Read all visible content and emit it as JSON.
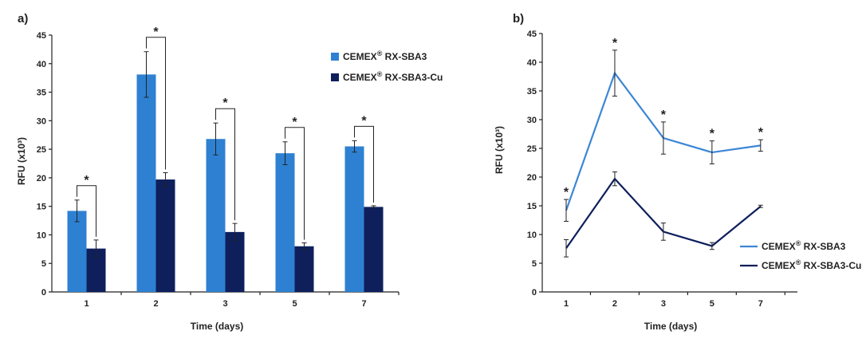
{
  "chart_data": [
    {
      "type": "bar",
      "panel_label": "a)",
      "categories": [
        "1",
        "2",
        "3",
        "5",
        "7"
      ],
      "series": [
        {
          "name": "CEMEX® RX-SBA3",
          "values": [
            14.2,
            38.1,
            26.8,
            24.3,
            25.5
          ],
          "errors": [
            1.9,
            4.0,
            2.8,
            2.0,
            1.0
          ],
          "color": "#2e81d2"
        },
        {
          "name": "CEMEX® RX-SBA3-Cu",
          "values": [
            7.6,
            19.7,
            10.5,
            8.0,
            14.9
          ],
          "errors": [
            1.5,
            1.2,
            1.5,
            0.6,
            0.2
          ],
          "color": "#0e1f5c"
        }
      ],
      "significance": [
        "*",
        "*",
        "*",
        "*",
        "*"
      ],
      "xlabel": "Time (days)",
      "ylabel": "RFU (x10³)",
      "ylim": [
        0,
        45
      ],
      "yticks": [
        0,
        5,
        10,
        15,
        20,
        25,
        30,
        35,
        40,
        45
      ],
      "grid": false,
      "legend_position": "top-right"
    },
    {
      "type": "line",
      "panel_label": "b)",
      "categories": [
        "1",
        "2",
        "3",
        "5",
        "7"
      ],
      "series": [
        {
          "name": "CEMEX® RX-SBA3",
          "values": [
            14.2,
            38.1,
            26.8,
            24.3,
            25.5
          ],
          "errors": [
            1.9,
            4.0,
            2.8,
            2.0,
            1.0
          ],
          "color": "#3c86d6"
        },
        {
          "name": "CEMEX® RX-SBA3-Cu",
          "values": [
            7.6,
            19.7,
            10.5,
            8.0,
            14.9
          ],
          "errors": [
            1.5,
            1.2,
            1.5,
            0.6,
            0.2
          ],
          "color": "#0e1f5c"
        }
      ],
      "significance": [
        "*",
        "*",
        "*",
        "*",
        "*"
      ],
      "xlabel": "Time (days)",
      "ylabel": "RFU (x10³)",
      "ylim": [
        0,
        45
      ],
      "yticks": [
        0,
        5,
        10,
        15,
        20,
        25,
        30,
        35,
        40,
        45
      ],
      "grid": false,
      "legend_position": "bottom-right"
    }
  ]
}
